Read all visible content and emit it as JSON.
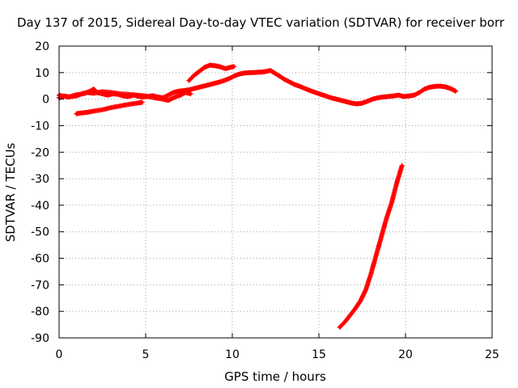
{
  "chart_data": {
    "type": "scatter",
    "title": "Day 137 of 2015, Sidereal Day-to-day VTEC variation (SDTVAR) for receiver borr",
    "xlabel": "GPS time / hours",
    "ylabel": "SDTVAR / TECUs",
    "xlim": [
      0,
      25
    ],
    "ylim": [
      -90,
      20
    ],
    "xticks": [
      0,
      5,
      10,
      15,
      20,
      25
    ],
    "yticks": [
      20,
      10,
      0,
      -10,
      -20,
      -30,
      -40,
      -50,
      -60,
      -70,
      -80,
      -90
    ],
    "grid": true,
    "marker": "plus",
    "color": "#ff0000",
    "series": [
      {
        "name": "",
        "segments": [
          [
            [
              0.0,
              0.5
            ],
            [
              0.3,
              1.2
            ],
            [
              0.6,
              0.8
            ],
            [
              0.9,
              1.5
            ],
            [
              1.2,
              1.8
            ],
            [
              1.5,
              2.2
            ],
            [
              1.8,
              3.0
            ],
            [
              2.0,
              3.8
            ],
            [
              2.2,
              2.5
            ],
            [
              2.5,
              2.0
            ],
            [
              2.8,
              1.5
            ],
            [
              3.1,
              2.0
            ],
            [
              3.4,
              1.8
            ],
            [
              3.7,
              1.2
            ],
            [
              4.0,
              1.0
            ],
            [
              4.3,
              1.5
            ],
            [
              4.5,
              1.2
            ],
            [
              4.8,
              0.8
            ],
            [
              5.1,
              1.0
            ],
            [
              5.4,
              1.3
            ],
            [
              5.7,
              0.8
            ],
            [
              6.0,
              0.5
            ],
            [
              6.3,
              1.5
            ],
            [
              6.6,
              2.5
            ],
            [
              6.9,
              3.0
            ],
            [
              7.2,
              3.2
            ],
            [
              7.5,
              3.5
            ],
            [
              7.8,
              4.0
            ],
            [
              8.1,
              4.5
            ],
            [
              8.4,
              5.0
            ],
            [
              8.7,
              5.5
            ],
            [
              9.0,
              6.0
            ],
            [
              9.3,
              6.5
            ],
            [
              9.6,
              7.2
            ],
            [
              9.9,
              8.0
            ],
            [
              10.2,
              9.0
            ],
            [
              10.5,
              9.6
            ],
            [
              10.8,
              9.9
            ],
            [
              11.1,
              10.0
            ],
            [
              11.4,
              10.1
            ],
            [
              11.7,
              10.2
            ],
            [
              12.0,
              10.5
            ],
            [
              12.2,
              10.8
            ],
            [
              12.4,
              10.0
            ],
            [
              12.7,
              8.8
            ],
            [
              13.0,
              7.5
            ],
            [
              13.3,
              6.5
            ],
            [
              13.6,
              5.5
            ],
            [
              13.9,
              4.8
            ],
            [
              14.2,
              4.0
            ],
            [
              14.5,
              3.2
            ],
            [
              14.8,
              2.5
            ],
            [
              15.1,
              1.8
            ],
            [
              15.4,
              1.2
            ],
            [
              15.7,
              0.5
            ],
            [
              16.0,
              0.0
            ],
            [
              16.3,
              -0.5
            ],
            [
              16.6,
              -1.0
            ],
            [
              16.9,
              -1.5
            ],
            [
              17.2,
              -1.8
            ],
            [
              17.5,
              -1.5
            ],
            [
              17.8,
              -0.8
            ],
            [
              18.1,
              0.0
            ],
            [
              18.4,
              0.5
            ],
            [
              18.7,
              0.8
            ],
            [
              19.0,
              1.0
            ],
            [
              19.3,
              1.2
            ],
            [
              19.6,
              1.5
            ],
            [
              19.9,
              1.0
            ],
            [
              20.2,
              1.2
            ],
            [
              20.5,
              1.5
            ],
            [
              20.8,
              2.5
            ],
            [
              21.1,
              3.8
            ],
            [
              21.4,
              4.5
            ],
            [
              21.7,
              4.8
            ],
            [
              22.0,
              4.9
            ],
            [
              22.3,
              4.6
            ],
            [
              22.6,
              4.0
            ],
            [
              22.9,
              3.0
            ]
          ],
          [
            [
              0.0,
              1.5
            ],
            [
              0.5,
              0.8
            ],
            [
              1.0,
              1.2
            ],
            [
              1.3,
              2.0
            ],
            [
              1.6,
              2.5
            ],
            [
              2.0,
              2.2
            ],
            [
              2.5,
              2.8
            ],
            [
              3.0,
              2.5
            ],
            [
              3.5,
              2.0
            ],
            [
              4.0,
              1.8
            ],
            [
              4.5,
              1.5
            ],
            [
              5.0,
              1.2
            ],
            [
              5.5,
              0.5
            ],
            [
              6.0,
              0.0
            ],
            [
              6.3,
              -0.5
            ],
            [
              6.6,
              0.5
            ],
            [
              7.0,
              1.5
            ],
            [
              7.3,
              2.5
            ],
            [
              7.6,
              2.0
            ]
          ],
          [
            [
              1.0,
              -5.5
            ],
            [
              1.3,
              -5.2
            ],
            [
              1.6,
              -5.0
            ],
            [
              2.0,
              -4.5
            ],
            [
              2.5,
              -4.0
            ],
            [
              3.0,
              -3.2
            ],
            [
              3.5,
              -2.6
            ],
            [
              4.0,
              -2.0
            ],
            [
              4.5,
              -1.5
            ],
            [
              4.8,
              -1.2
            ]
          ],
          [
            [
              7.5,
              7.0
            ],
            [
              7.8,
              9.0
            ],
            [
              8.1,
              10.5
            ],
            [
              8.4,
              12.0
            ],
            [
              8.7,
              12.8
            ],
            [
              9.0,
              12.6
            ],
            [
              9.3,
              12.2
            ],
            [
              9.6,
              11.5
            ],
            [
              9.9,
              12.0
            ],
            [
              10.1,
              12.3
            ]
          ],
          [
            [
              16.2,
              -86.0
            ],
            [
              16.5,
              -84.0
            ],
            [
              16.8,
              -81.5
            ],
            [
              17.1,
              -79.0
            ],
            [
              17.4,
              -76.0
            ],
            [
              17.7,
              -72.0
            ],
            [
              18.0,
              -66.0
            ],
            [
              18.3,
              -59.0
            ],
            [
              18.6,
              -52.0
            ],
            [
              18.9,
              -45.0
            ],
            [
              19.2,
              -39.0
            ],
            [
              19.5,
              -31.5
            ],
            [
              19.8,
              -25.0
            ]
          ]
        ]
      }
    ]
  }
}
